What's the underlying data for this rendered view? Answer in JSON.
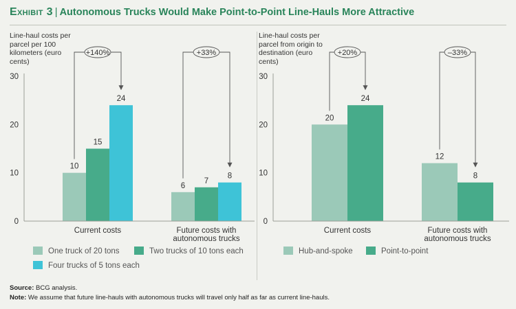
{
  "header": {
    "exhibit_label": "Exhibit 3",
    "title": "Autonomous Trucks Would Make Point-to-Point Line-Hauls More Attractive"
  },
  "chart_data": [
    {
      "type": "bar",
      "ylabel": "Line-haul costs per parcel per 100 kilometers (euro cents)",
      "ylim": [
        0,
        30
      ],
      "yticks": [
        0,
        10,
        20,
        30
      ],
      "categories": [
        "Current costs",
        "Future costs with autonomous trucks"
      ],
      "series": [
        {
          "name": "One truck of 20 tons",
          "color": "#9bc9b8",
          "values": [
            10,
            6
          ]
        },
        {
          "name": "Two trucks of 10 tons each",
          "color": "#47ab8a",
          "values": [
            15,
            7
          ]
        },
        {
          "name": "Four trucks of 5 tons each",
          "color": "#3ec3d7",
          "values": [
            24,
            8
          ]
        }
      ],
      "annotations": [
        "+140%",
        "+33%"
      ],
      "legend_position": "bottom"
    },
    {
      "type": "bar",
      "ylabel": "Line-haul costs per parcel from origin to destination (euro cents)",
      "ylim": [
        0,
        30
      ],
      "yticks": [
        0,
        10,
        20,
        30
      ],
      "categories": [
        "Current costs",
        "Future costs with autonomous trucks"
      ],
      "series": [
        {
          "name": "Hub-and-spoke",
          "color": "#9bc9b8",
          "values": [
            20,
            12
          ]
        },
        {
          "name": "Point-to-point",
          "color": "#47ab8a",
          "values": [
            24,
            8
          ]
        }
      ],
      "annotations": [
        "+20%",
        "–33%"
      ],
      "legend_position": "bottom"
    }
  ],
  "footer": {
    "source_label": "Source:",
    "source_text": "BCG analysis.",
    "note_label": "Note:",
    "note_text": "We assume that future line-hauls with autonomous trucks will travel only half as far as current line-hauls."
  }
}
